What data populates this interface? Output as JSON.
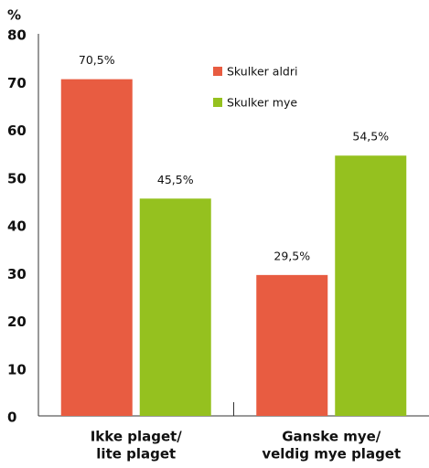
{
  "chart_data": {
    "type": "bar",
    "y_unit": "%",
    "categories": [
      [
        "Ikke plaget/",
        "lite plaget"
      ],
      [
        "Ganske mye/",
        "veldig mye plaget"
      ]
    ],
    "series": [
      {
        "name": "Skulker aldri",
        "color": "#e85c41",
        "values": [
          70.5,
          29.5
        ],
        "value_labels": [
          "70,5%",
          "29,5%"
        ]
      },
      {
        "name": "Skulker mye",
        "color": "#95c11f",
        "values": [
          45.5,
          54.5
        ],
        "value_labels": [
          "45,5%",
          "54,5%"
        ]
      }
    ],
    "ylim": [
      0,
      80
    ],
    "yticks": [
      0,
      10,
      20,
      30,
      40,
      50,
      60,
      70,
      80
    ],
    "grid": false,
    "legend": "top-center"
  }
}
